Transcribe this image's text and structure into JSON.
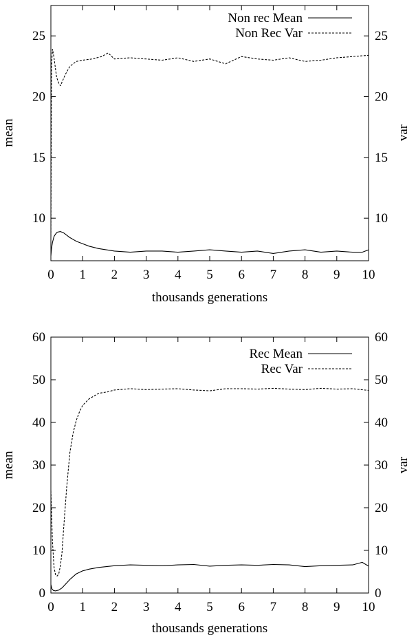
{
  "chart_data": [
    {
      "type": "line",
      "title": "",
      "xlabel": "thousands generations",
      "ylabel": "mean",
      "y2label": "var",
      "xlim": [
        0,
        10
      ],
      "ylim": [
        6.5,
        27.5
      ],
      "xticks": [
        "0",
        "1",
        "2",
        "3",
        "4",
        "5",
        "6",
        "7",
        "8",
        "9",
        "10"
      ],
      "yticks": [
        "10",
        "15",
        "20",
        "25"
      ],
      "y2ticks": [
        "10",
        "15",
        "20",
        "25"
      ],
      "legend_position": "top-right",
      "grid": false,
      "series": [
        {
          "name": "Non rec Mean",
          "style": "solid",
          "x": [
            0,
            0.02,
            0.05,
            0.1,
            0.15,
            0.2,
            0.3,
            0.4,
            0.5,
            0.6,
            0.8,
            1.0,
            1.2,
            1.5,
            2.0,
            2.5,
            3.0,
            3.5,
            4.0,
            4.5,
            5.0,
            5.5,
            6.0,
            6.5,
            7.0,
            7.5,
            8.0,
            8.5,
            9.0,
            9.5,
            9.8,
            10.0
          ],
          "values": [
            6.9,
            7.5,
            8.0,
            8.5,
            8.7,
            8.85,
            8.9,
            8.8,
            8.6,
            8.4,
            8.1,
            7.9,
            7.7,
            7.5,
            7.3,
            7.2,
            7.3,
            7.3,
            7.2,
            7.3,
            7.4,
            7.3,
            7.2,
            7.3,
            7.1,
            7.3,
            7.4,
            7.2,
            7.3,
            7.2,
            7.2,
            7.4
          ]
        },
        {
          "name": "Non Rec Var",
          "style": "dashed",
          "x": [
            0,
            0.02,
            0.05,
            0.08,
            0.12,
            0.18,
            0.25,
            0.3,
            0.35,
            0.45,
            0.6,
            0.8,
            1.0,
            1.3,
            1.6,
            1.8,
            2.0,
            2.5,
            3.0,
            3.5,
            4.0,
            4.5,
            5.0,
            5.5,
            6.0,
            6.5,
            7.0,
            7.5,
            8.0,
            8.5,
            9.0,
            9.5,
            10.0
          ],
          "values": [
            8.5,
            22.5,
            23.9,
            23.5,
            22.8,
            21.6,
            21.1,
            20.9,
            21.2,
            21.8,
            22.5,
            22.9,
            23.0,
            23.1,
            23.3,
            23.6,
            23.1,
            23.2,
            23.1,
            23.0,
            23.2,
            22.9,
            23.1,
            22.7,
            23.3,
            23.1,
            23.0,
            23.2,
            22.9,
            23.0,
            23.2,
            23.3,
            23.4
          ]
        }
      ]
    },
    {
      "type": "line",
      "title": "",
      "xlabel": "thousands generations",
      "ylabel": "mean",
      "y2label": "var",
      "xlim": [
        0,
        10
      ],
      "ylim": [
        0,
        60
      ],
      "xticks": [
        "0",
        "1",
        "2",
        "3",
        "4",
        "5",
        "6",
        "7",
        "8",
        "9",
        "10"
      ],
      "yticks": [
        "0",
        "10",
        "20",
        "30",
        "40",
        "50",
        "60"
      ],
      "y2ticks": [
        "0",
        "10",
        "20",
        "30",
        "40",
        "50",
        "60"
      ],
      "legend_position": "top-right",
      "grid": false,
      "series": [
        {
          "name": "Rec Mean",
          "style": "solid",
          "x": [
            0,
            0.03,
            0.08,
            0.15,
            0.25,
            0.35,
            0.45,
            0.6,
            0.8,
            1.0,
            1.2,
            1.5,
            2.0,
            2.5,
            3.0,
            3.5,
            4.0,
            4.5,
            5.0,
            5.5,
            6.0,
            6.5,
            7.0,
            7.5,
            8.0,
            8.5,
            9.0,
            9.5,
            9.8,
            10.0
          ],
          "values": [
            2.0,
            1.0,
            0.6,
            0.5,
            0.7,
            1.2,
            2.0,
            3.2,
            4.5,
            5.2,
            5.6,
            6.0,
            6.4,
            6.6,
            6.5,
            6.4,
            6.6,
            6.7,
            6.3,
            6.5,
            6.6,
            6.5,
            6.7,
            6.6,
            6.2,
            6.4,
            6.5,
            6.6,
            7.2,
            6.3
          ]
        },
        {
          "name": "Rec Var",
          "style": "dashed",
          "x": [
            0,
            0.02,
            0.05,
            0.1,
            0.15,
            0.2,
            0.25,
            0.3,
            0.35,
            0.4,
            0.5,
            0.6,
            0.7,
            0.8,
            0.9,
            1.0,
            1.2,
            1.5,
            1.8,
            2.0,
            2.5,
            3.0,
            3.5,
            4.0,
            4.5,
            5.0,
            5.5,
            6.0,
            6.5,
            7.0,
            7.5,
            8.0,
            8.5,
            9.0,
            9.5,
            10.0
          ],
          "values": [
            24.0,
            19.0,
            12.0,
            6.0,
            4.2,
            4.0,
            4.5,
            6.5,
            9.5,
            15.0,
            25.0,
            33.0,
            37.5,
            40.5,
            42.5,
            44.0,
            45.5,
            46.8,
            47.2,
            47.6,
            47.9,
            47.7,
            47.8,
            47.9,
            47.6,
            47.4,
            47.9,
            47.9,
            47.8,
            48.0,
            47.8,
            47.7,
            48.0,
            47.8,
            47.9,
            47.5
          ]
        }
      ]
    }
  ]
}
